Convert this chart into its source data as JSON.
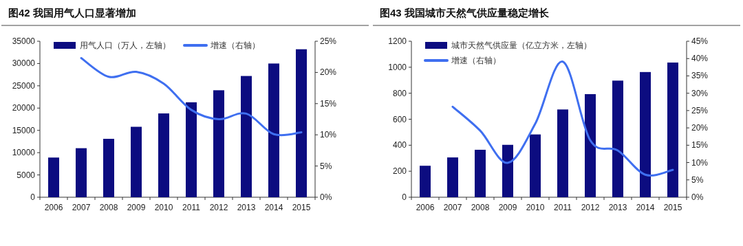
{
  "chart_data": [
    {
      "type": "bar",
      "title": "图42 我国用气人口显著增加",
      "categories": [
        "2006",
        "2007",
        "2008",
        "2009",
        "2010",
        "2011",
        "2012",
        "2013",
        "2014",
        "2015"
      ],
      "series": [
        {
          "name": "用气人口（万人，左轴）",
          "color": "#0c0c80",
          "values": [
            8900,
            11000,
            13100,
            15800,
            18800,
            21300,
            24000,
            27200,
            30000,
            33200
          ]
        },
        {
          "name": "增速（右轴）",
          "type": "line",
          "axis": "y2",
          "color": "#3f6ff0",
          "values": [
            null,
            22.3,
            19.3,
            20.1,
            18.2,
            14.0,
            12.5,
            13.4,
            10.1,
            10.4
          ]
        }
      ],
      "ylim": [
        0,
        35000
      ],
      "yticks": [
        0,
        5000,
        10000,
        15000,
        20000,
        25000,
        30000,
        35000
      ],
      "y2lim": [
        0,
        25
      ],
      "y2ticks": [
        {
          "value": 0,
          "label": "0%"
        },
        {
          "value": 5,
          "label": "5%"
        },
        {
          "value": 10,
          "label": "10%"
        },
        {
          "value": 15,
          "label": "15%"
        },
        {
          "value": 20,
          "label": "20%"
        },
        {
          "value": 25,
          "label": "25%"
        }
      ],
      "legend": "top"
    },
    {
      "type": "bar",
      "title": "图43 我国城市天然气供应量稳定增长",
      "categories": [
        "2006",
        "2007",
        "2008",
        "2009",
        "2010",
        "2011",
        "2012",
        "2013",
        "2014",
        "2015"
      ],
      "series": [
        {
          "name": "城市天然气供应量（亿立方米，左轴）",
          "color": "#0c0c80",
          "values": [
            242,
            306,
            365,
            403,
            483,
            675,
            793,
            897,
            963,
            1036
          ]
        },
        {
          "name": "增速（右轴）",
          "type": "line",
          "axis": "y2",
          "color": "#3f6ff0",
          "values": [
            null,
            26.1,
            19.2,
            9.9,
            21.2,
            39.1,
            16.4,
            13.5,
            6.5,
            7.9
          ]
        }
      ],
      "ylim": [
        0,
        1200
      ],
      "yticks": [
        0,
        200,
        400,
        600,
        800,
        1000,
        1200
      ],
      "y2lim": [
        0,
        45
      ],
      "y2ticks": [
        {
          "value": 0,
          "label": "0%"
        },
        {
          "value": 5,
          "label": "5%"
        },
        {
          "value": 10,
          "label": "10%"
        },
        {
          "value": 15,
          "label": "15%"
        },
        {
          "value": 20,
          "label": "20%"
        },
        {
          "value": 25,
          "label": "25%"
        },
        {
          "value": 30,
          "label": "30%"
        },
        {
          "value": 35,
          "label": "35%"
        },
        {
          "value": 40,
          "label": "40%"
        },
        {
          "value": 45,
          "label": "45%"
        }
      ],
      "legend": "top"
    }
  ]
}
